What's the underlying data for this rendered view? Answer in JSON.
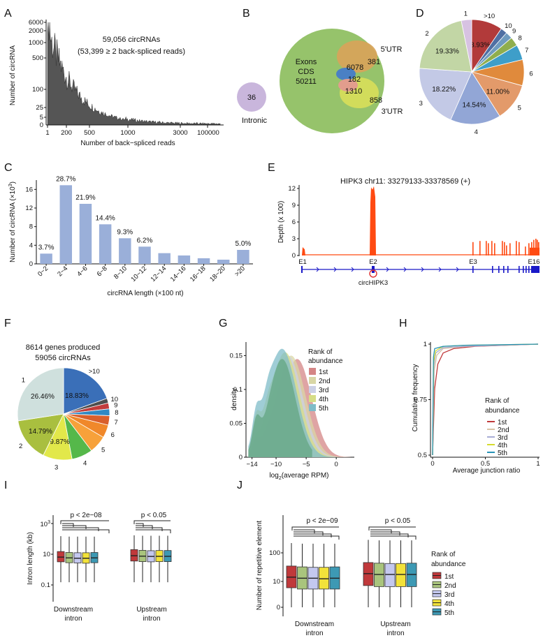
{
  "colors": {
    "dark_gray": "#555555",
    "bar_blue": "#9aafd9",
    "venn_green": "#96c36b",
    "venn_orange": "#d8a45a",
    "venn_yellow": "#d7de5a",
    "venn_purple": "#c9b6dc",
    "venn_blue": "#4a80c4",
    "venn_pink": "#e29d8d",
    "track_orange": "#ff4a12",
    "gene_blue": "#1a19c8",
    "rank_1st": "#c0393b",
    "rank_2nd": "#a9c47d",
    "rank_3rd": "#c4c8ef",
    "rank_4th": "#f2e23a",
    "rank_5th": "#3d99b4"
  },
  "panels": {
    "A": {
      "label": "A",
      "annotation_line1": "59,056 circRNAs",
      "annotation_line2": "(53,399 ≥ 2 back-spliced reads)",
      "ylabel": "Number of circRNA",
      "xlabel": "Number of back−spliced reads",
      "yticks": [
        "6000",
        "2000",
        "1000",
        "500",
        "100",
        "25",
        "5",
        "0"
      ],
      "xticks": [
        "1",
        "200",
        "500",
        "1000",
        "3000",
        "100000"
      ]
    },
    "B": {
      "label": "B",
      "intronic_value": "36",
      "intronic_label": "Intronic",
      "exon_label_1": "Exons",
      "exon_label_2": "CDS",
      "exon_value": "50211",
      "v_6078": "6078",
      "v_381": "381",
      "v_182": "182",
      "v_1310": "1310",
      "v_858": "858",
      "utr5_label": "5'UTR",
      "utr3_label": "3'UTR"
    },
    "C": {
      "label": "C",
      "ylabel_main": "Number of circRNA (×10",
      "ylabel_sup": "3",
      "ylabel_end": ")",
      "xlabel": "circRNA length (×100 nt)",
      "yticks": [
        "0",
        "4",
        "8",
        "12",
        "16"
      ]
    },
    "D": {
      "label": "D"
    },
    "E": {
      "label": "E",
      "title": "HIPK3 chr11: 33279133-33378569 (+)",
      "ylabel": "Depth (x 100)",
      "yticks": [
        "0",
        "3",
        "6",
        "9",
        "12"
      ],
      "exon_labels": [
        "E1",
        "E2",
        "E3",
        "E16"
      ],
      "circ_label": "circHIPK3"
    },
    "F": {
      "label": "F",
      "title_line1": "8614 genes produced",
      "title_line2": "59056 circRNAs"
    },
    "G": {
      "label": "G",
      "ylabel": "density",
      "xlabel_pre": "log",
      "xlabel_sub": "2",
      "xlabel_post": "(average RPM)",
      "yticks": [
        "0",
        "0.05",
        "0.1",
        "0.15"
      ],
      "xticks": [
        "−14",
        "−10",
        "−5",
        "0"
      ],
      "legend_title_1": "Rank of",
      "legend_title_2": "abundance",
      "legend_items": [
        "1st",
        "2nd",
        "3rd",
        "4th",
        "5th"
      ]
    },
    "H": {
      "label": "H",
      "ylabel": "Cumulative frequency",
      "xlabel": "Average junction ratio",
      "yticks": [
        "0.5",
        "0.75",
        "1"
      ],
      "xticks": [
        "0",
        "0.5",
        "1"
      ],
      "legend_title_1": "Rank of",
      "legend_title_2": "abundance",
      "legend_items": [
        "1st",
        "2nd",
        "3rd",
        "4th",
        "5th"
      ]
    },
    "I": {
      "label": "I",
      "ylabel": "Intron length (kb)",
      "yticks": [
        "10",
        "10",
        "0.1"
      ],
      "ytick_top_base": "10",
      "ytick_top_sup": "3",
      "pvalue_left": "p < 2e−08",
      "pvalue_right": "p < 0.05",
      "group1_line1": "Downstream",
      "group1_line2": "intron",
      "group2_line1": "Upstream",
      "group2_line2": "intron"
    },
    "J": {
      "label": "J",
      "ylabel": "Number of repetitive element",
      "yticks": [
        "100",
        "10",
        "0"
      ],
      "pvalue_left": "p < 2e−09",
      "pvalue_right": "p < 0.05",
      "group1_line1": "Downstream",
      "group1_line2": "intron",
      "group2_line1": "Upstream",
      "group2_line2": "intron",
      "legend_title_1": "Rank of",
      "legend_title_2": "abundance",
      "legend_items": [
        "1st",
        "2nd",
        "3rd",
        "4th",
        "5th"
      ]
    }
  },
  "chart_data": [
    {
      "panel": "A",
      "type": "bar",
      "title": "59,056 circRNAs (53,399 ≥ 2 back-spliced reads)",
      "xlabel": "Number of back−spliced reads",
      "ylabel": "Number of circRNA",
      "x_scale": "log-like",
      "y_scale": "log-like",
      "approx_counts_at": [
        {
          "reads": 1,
          "count": 5657
        },
        {
          "reads": 2,
          "count": 2000
        },
        {
          "reads": 10,
          "count": 700
        },
        {
          "reads": 50,
          "count": 200
        },
        {
          "reads": 200,
          "count": 30
        },
        {
          "reads": 500,
          "count": 8
        },
        {
          "reads": 1000,
          "count": 3
        },
        {
          "reads": 3000,
          "count": 1
        }
      ]
    },
    {
      "panel": "B",
      "type": "venn",
      "sets": [
        "Exons CDS",
        "5'UTR",
        "3'UTR",
        "Intronic"
      ],
      "regions": [
        {
          "label": "Intronic",
          "value": 36
        },
        {
          "label": "Exons CDS only",
          "value": 50211
        },
        {
          "label": "CDS ∩ 5'UTR",
          "value": 6078
        },
        {
          "label": "5'UTR only",
          "value": 381
        },
        {
          "label": "CDS ∩ 5'UTR ∩ 3'UTR",
          "value": 182
        },
        {
          "label": "CDS ∩ 3'UTR",
          "value": 1310
        },
        {
          "label": "3'UTR only",
          "value": 858
        }
      ]
    },
    {
      "panel": "C",
      "type": "bar",
      "categories": [
        "0~2",
        "2~4",
        "4~6",
        "6~8",
        "8~10",
        "10~12",
        "12~14",
        "14~16",
        "16~18",
        "18~20",
        ">20"
      ],
      "values": [
        2.2,
        16.9,
        12.9,
        8.5,
        5.5,
        3.7,
        2.3,
        1.8,
        1.2,
        0.9,
        3.0
      ],
      "data_labels": [
        "3.7%",
        "28.7%",
        "21.9%",
        "14.4%",
        "9.3%",
        "6.2%",
        "",
        "",
        "",
        "",
        "5.0%"
      ],
      "xlabel": "circRNA length (×100 nt)",
      "ylabel": "Number of circRNA (×10^3)",
      "ylim": [
        0,
        18
      ]
    },
    {
      "panel": "D",
      "type": "pie",
      "slices": [
        {
          "label": ">10",
          "percent": 8.93,
          "shown": "8.93%",
          "color": "#b23a3a"
        },
        {
          "label": "10",
          "percent": 1.9,
          "shown": "",
          "color": "#4f6fa3"
        },
        {
          "label": "9",
          "percent": 2.0,
          "shown": "",
          "color": "#6f9bc0"
        },
        {
          "label": "8",
          "percent": 2.6,
          "shown": "",
          "color": "#8fae4e"
        },
        {
          "label": "7",
          "percent": 4.4,
          "shown": "",
          "color": "#3e9ec9"
        },
        {
          "label": "6",
          "percent": 7.5,
          "shown": "",
          "color": "#e08a3c"
        },
        {
          "label": "5",
          "percent": 11.0,
          "shown": "11.00%",
          "color": "#e39a6a"
        },
        {
          "label": "4",
          "percent": 14.54,
          "shown": "14.54%",
          "color": "#92a6d6"
        },
        {
          "label": "3",
          "percent": 18.22,
          "shown": "18.22%",
          "color": "#c3c9e6"
        },
        {
          "label": "2",
          "percent": 19.33,
          "shown": "19.33%",
          "color": "#c2d6a5"
        },
        {
          "label": "1",
          "percent": 3.0,
          "shown": "",
          "color": "#d7c2e2"
        }
      ]
    },
    {
      "panel": "E",
      "type": "area",
      "title": "HIPK3 chr11: 33279133-33378569 (+)",
      "ylabel": "Depth (x 100)",
      "ylim": [
        0,
        12.5
      ],
      "peaks": [
        {
          "position": "E1",
          "depth": 1.5
        },
        {
          "position": "E2",
          "depth": 12.2
        },
        {
          "position": "E3",
          "depth": 2.4
        },
        {
          "position": "E16",
          "depth": 3.0
        }
      ]
    },
    {
      "panel": "F",
      "type": "pie",
      "title": "8614 genes produced 59056 circRNAs",
      "slices": [
        {
          "label": ">10",
          "percent": 18.83,
          "shown": "18.83%",
          "color": "#3a6fb8"
        },
        {
          "label": "10",
          "percent": 1.6,
          "shown": "",
          "color": "#4e4e4e"
        },
        {
          "label": "9",
          "percent": 2.0,
          "shown": "",
          "color": "#c23b3b"
        },
        {
          "label": "8",
          "percent": 2.3,
          "shown": "",
          "color": "#2f88c3"
        },
        {
          "label": "7",
          "percent": 3.2,
          "shown": "",
          "color": "#d95f2b"
        },
        {
          "label": "6",
          "percent": 4.4,
          "shown": "",
          "color": "#f0882a"
        },
        {
          "label": "5",
          "percent": 6.0,
          "shown": "",
          "color": "#f7a13a"
        },
        {
          "label": "4",
          "percent": 7.1,
          "shown": "",
          "color": "#55b84a"
        },
        {
          "label": "3",
          "percent": 9.87,
          "shown": "9.87%",
          "color": "#e2e84a"
        },
        {
          "label": "2",
          "percent": 14.79,
          "shown": "14.79%",
          "color": "#a9bf3f"
        },
        {
          "label": "1",
          "percent": 26.46,
          "shown": "26.46%",
          "color": "#cfe0dd"
        }
      ]
    },
    {
      "panel": "G",
      "type": "area",
      "xlabel": "log2(average RPM)",
      "ylabel": "density",
      "xlim": [
        -15,
        3
      ],
      "ylim": [
        0,
        0.17
      ],
      "series": [
        {
          "name": "1st",
          "peak_x": -6.5,
          "peak_density": 0.145
        },
        {
          "name": "2nd",
          "peak_x": -7.5,
          "peak_density": 0.15
        },
        {
          "name": "3rd",
          "peak_x": -8.0,
          "peak_density": 0.15
        },
        {
          "name": "4th",
          "peak_x": -8.5,
          "peak_density": 0.155
        },
        {
          "name": "5th",
          "peak_x": -9.0,
          "peak_density": 0.16
        }
      ]
    },
    {
      "panel": "H",
      "type": "line",
      "xlabel": "Average junction ratio",
      "ylabel": "Cumulative frequency",
      "xlim": [
        0,
        1
      ],
      "ylim": [
        0.5,
        1.0
      ],
      "series": [
        {
          "name": "1st",
          "x": [
            0,
            0.02,
            0.05,
            0.1,
            0.2,
            0.4,
            1.0
          ],
          "y": [
            0.5,
            0.8,
            0.91,
            0.96,
            0.98,
            0.99,
            1.0
          ]
        },
        {
          "name": "2nd",
          "x": [
            0,
            0.015,
            0.04,
            0.1,
            0.3,
            1.0
          ],
          "y": [
            0.5,
            0.88,
            0.95,
            0.98,
            0.99,
            1.0
          ]
        },
        {
          "name": "3rd",
          "x": [
            0,
            0.012,
            0.03,
            0.1,
            0.3,
            1.0
          ],
          "y": [
            0.5,
            0.9,
            0.96,
            0.985,
            0.99,
            1.0
          ]
        },
        {
          "name": "4th",
          "x": [
            0,
            0.01,
            0.03,
            0.1,
            0.3,
            1.0
          ],
          "y": [
            0.5,
            0.92,
            0.97,
            0.99,
            0.995,
            1.0
          ]
        },
        {
          "name": "5th",
          "x": [
            0,
            0.008,
            0.02,
            0.1,
            0.3,
            1.0
          ],
          "y": [
            0.5,
            0.94,
            0.98,
            0.99,
            0.995,
            1.0
          ]
        }
      ]
    },
    {
      "panel": "I",
      "type": "box",
      "ylabel": "Intron length (kb)",
      "y_scale": "log10",
      "groups": [
        "Downstream intron",
        "Upstream intron"
      ],
      "series_names": [
        "1st",
        "2nd",
        "3rd",
        "4th",
        "5th"
      ],
      "boxes": {
        "Downstream intron": [
          {
            "q1": 3.2,
            "median": 6.5,
            "q3": 15,
            "low": 0.15,
            "high": 150
          },
          {
            "q1": 2.8,
            "median": 5.8,
            "q3": 13,
            "low": 0.15,
            "high": 140
          },
          {
            "q1": 2.7,
            "median": 5.5,
            "q3": 12.5,
            "low": 0.15,
            "high": 140
          },
          {
            "q1": 2.6,
            "median": 5.5,
            "q3": 12.5,
            "low": 0.15,
            "high": 140
          },
          {
            "q1": 2.8,
            "median": 5.8,
            "q3": 13,
            "low": 0.15,
            "high": 140
          }
        ],
        "Upstream intron": [
          {
            "q1": 3.6,
            "median": 8.0,
            "q3": 20,
            "low": 0.15,
            "high": 170
          },
          {
            "q1": 3.3,
            "median": 7.5,
            "q3": 18,
            "low": 0.15,
            "high": 160
          },
          {
            "q1": 3.2,
            "median": 7.2,
            "q3": 17,
            "low": 0.15,
            "high": 160
          },
          {
            "q1": 3.3,
            "median": 7.3,
            "q3": 17.5,
            "low": 0.15,
            "high": 160
          },
          {
            "q1": 3.3,
            "median": 7.3,
            "q3": 17.5,
            "low": 0.15,
            "high": 160
          }
        ]
      },
      "pvalues": [
        "p < 2e−08",
        "p < 0.05"
      ]
    },
    {
      "panel": "J",
      "type": "box",
      "ylabel": "Number of repetitive element",
      "y_scale": "log-like",
      "groups": [
        "Downstream intron",
        "Upstream intron"
      ],
      "series_names": [
        "1st",
        "2nd",
        "3rd",
        "4th",
        "5th"
      ],
      "boxes": {
        "Downstream intron": [
          {
            "q1": 5,
            "median": 12,
            "q3": 30,
            "low": 1,
            "high": 200
          },
          {
            "q1": 4.5,
            "median": 11,
            "q3": 28,
            "low": 1,
            "high": 190
          },
          {
            "q1": 4.5,
            "median": 11,
            "q3": 27,
            "low": 1,
            "high": 190
          },
          {
            "q1": 4.5,
            "median": 10.5,
            "q3": 27,
            "low": 1,
            "high": 190
          },
          {
            "q1": 4.5,
            "median": 11,
            "q3": 28,
            "low": 1,
            "high": 190
          }
        ],
        "Upstream intron": [
          {
            "q1": 6,
            "median": 16,
            "q3": 40,
            "low": 1,
            "high": 260
          },
          {
            "q1": 5.5,
            "median": 15,
            "q3": 38,
            "low": 1,
            "high": 250
          },
          {
            "q1": 5.5,
            "median": 15,
            "q3": 37,
            "low": 1,
            "high": 250
          },
          {
            "q1": 5.5,
            "median": 15,
            "q3": 37,
            "low": 1,
            "high": 250
          },
          {
            "q1": 5.5,
            "median": 15,
            "q3": 38,
            "low": 1,
            "high": 250
          }
        ]
      },
      "pvalues": [
        "p < 2e−09",
        "p < 0.05"
      ]
    }
  ]
}
